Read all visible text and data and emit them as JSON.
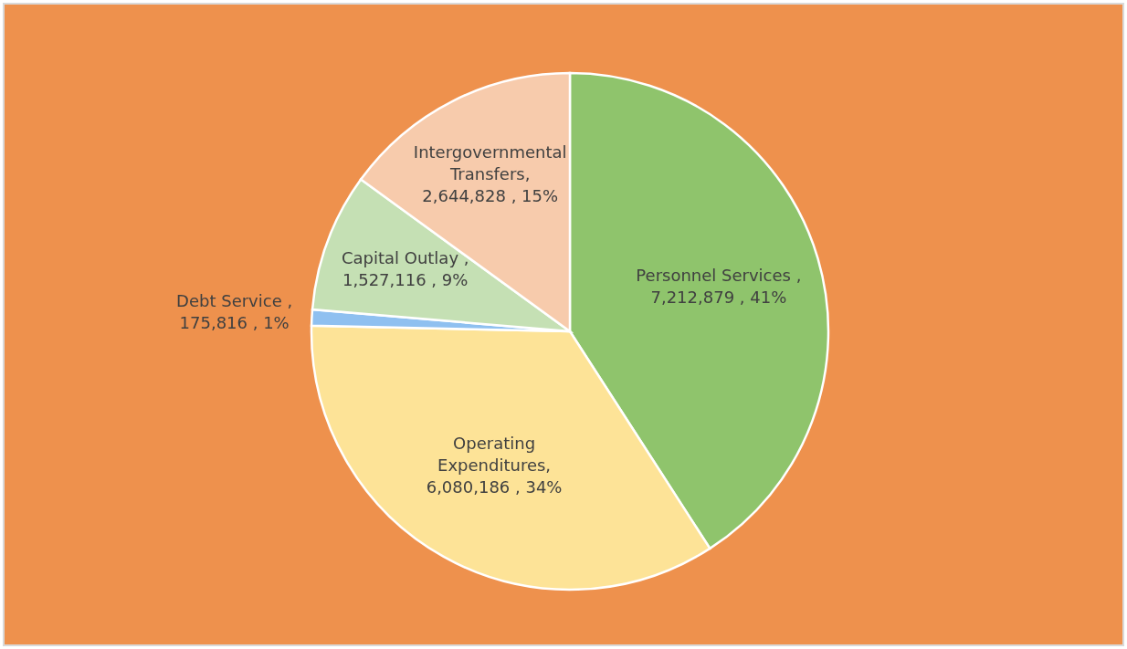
{
  "chart_data": {
    "type": "pie",
    "categories": [
      "Personnel Services",
      "Operating Expenditures",
      "Debt Service",
      "Capital Outlay",
      "Intergovernmental Transfers"
    ],
    "values": [
      7212879,
      6080186,
      175816,
      1527116,
      2644828
    ],
    "value_labels": [
      " ,\n7,212,879 , 41%",
      ",\n6,080,186 , 34%",
      " ,\n175,816 , 1%",
      " ,\n1,527,116 , 9%",
      ",\n2,644,828 , 15%"
    ],
    "colors": [
      "#8fc46c",
      "#fde397",
      "#8fc0f0",
      "#c5e0b4",
      "#f7cbac"
    ],
    "legend": false
  }
}
